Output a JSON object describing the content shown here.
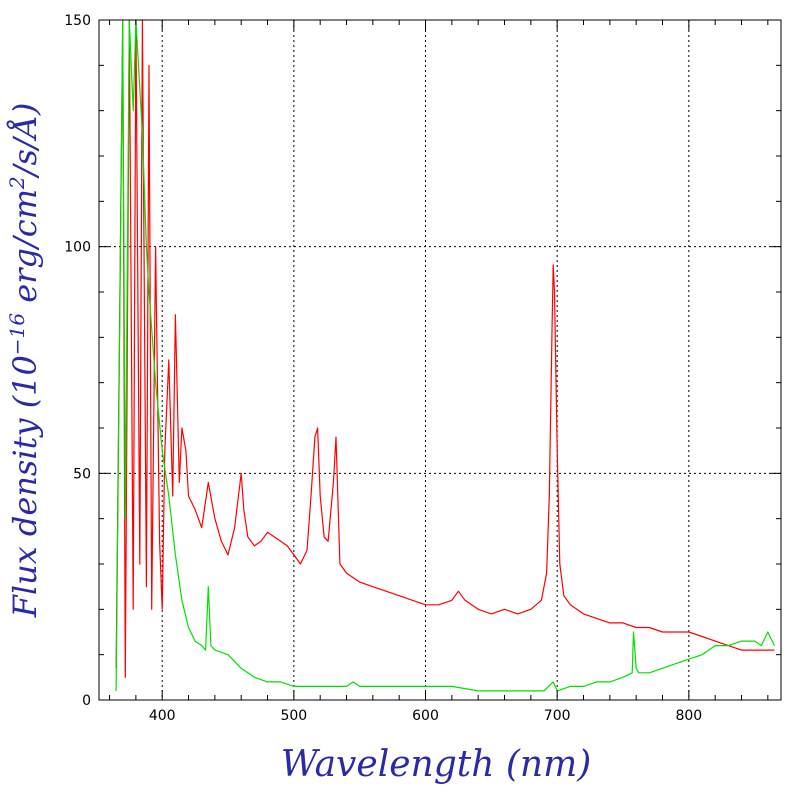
{
  "chart_data": {
    "type": "line",
    "xlabel": "Wavelength (nm)",
    "ylabel_parts": {
      "a": "Flux density (10",
      "exp1": "−16",
      "b": " erg/cm",
      "exp2": "2",
      "c": "/s/Å)"
    },
    "xlim": [
      352,
      870
    ],
    "ylim": [
      0,
      150
    ],
    "x_ticks": [
      400,
      500,
      600,
      700,
      800
    ],
    "y_ticks": [
      0,
      50,
      100,
      150
    ],
    "grid": true,
    "grid_style": "dotted",
    "series": [
      {
        "color": "#ff0000",
        "x": [
          365,
          370,
          372,
          375,
          378,
          380,
          383,
          385,
          388,
          390,
          392,
          395,
          398,
          400,
          402,
          405,
          408,
          410,
          413,
          415,
          418,
          420,
          425,
          430,
          435,
          440,
          445,
          450,
          455,
          460,
          462,
          465,
          470,
          475,
          480,
          485,
          490,
          495,
          500,
          505,
          510,
          513,
          516,
          518,
          520,
          523,
          526,
          530,
          532,
          535,
          540,
          545,
          550,
          560,
          570,
          580,
          590,
          600,
          610,
          620,
          625,
          630,
          640,
          650,
          660,
          670,
          680,
          688,
          692,
          694,
          696,
          697,
          698,
          700,
          702,
          705,
          710,
          720,
          730,
          740,
          750,
          760,
          770,
          780,
          790,
          800,
          810,
          820,
          830,
          840,
          850,
          860,
          865
        ],
        "y": [
          7,
          150,
          5,
          150,
          20,
          150,
          30,
          150,
          25,
          140,
          20,
          100,
          35,
          20,
          55,
          75,
          45,
          85,
          48,
          60,
          55,
          45,
          42,
          38,
          48,
          40,
          35,
          32,
          38,
          50,
          42,
          36,
          34,
          35,
          37,
          36,
          35,
          34,
          32,
          30,
          33,
          45,
          58,
          60,
          45,
          36,
          35,
          48,
          58,
          30,
          28,
          27,
          26,
          25,
          24,
          23,
          22,
          21,
          21,
          22,
          24,
          22,
          20,
          19,
          20,
          19,
          20,
          22,
          28,
          45,
          80,
          96,
          90,
          55,
          30,
          23,
          21,
          19,
          18,
          17,
          17,
          16,
          16,
          15,
          15,
          15,
          14,
          13,
          12,
          11,
          11,
          11,
          11
        ]
      },
      {
        "color": "#00e000",
        "x": [
          365,
          370,
          372,
          375,
          378,
          380,
          383,
          385,
          388,
          390,
          395,
          400,
          405,
          410,
          415,
          420,
          425,
          430,
          433,
          435,
          437,
          440,
          450,
          460,
          470,
          480,
          490,
          500,
          510,
          520,
          530,
          540,
          545,
          550,
          560,
          570,
          580,
          600,
          620,
          640,
          660,
          680,
          690,
          697,
          700,
          710,
          720,
          730,
          740,
          750,
          757,
          758,
          760,
          762,
          770,
          780,
          790,
          800,
          810,
          820,
          830,
          840,
          850,
          855,
          860,
          865
        ],
        "y": [
          2,
          150,
          40,
          150,
          130,
          150,
          135,
          125,
          100,
          90,
          70,
          55,
          45,
          32,
          22,
          16,
          13,
          12,
          11,
          25,
          12,
          11,
          10,
          7,
          5,
          4,
          4,
          3,
          3,
          3,
          3,
          3,
          4,
          3,
          3,
          3,
          3,
          3,
          3,
          2,
          2,
          2,
          2,
          4,
          2,
          3,
          3,
          4,
          4,
          5,
          6,
          15,
          7,
          6,
          6,
          7,
          8,
          9,
          10,
          12,
          12,
          13,
          13,
          12,
          15,
          12
        ]
      }
    ]
  }
}
